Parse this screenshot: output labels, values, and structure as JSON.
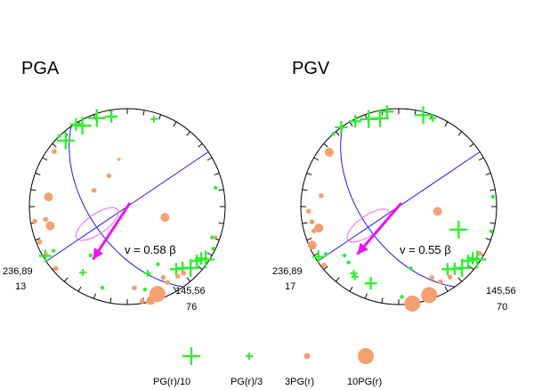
{
  "colors": {
    "plus": "#33ee33",
    "circle": "#f4a070",
    "plane": "#1a1aee",
    "arrow": "#ee11ee",
    "ellipse": "#ee66ee",
    "frame": "#000000"
  },
  "legend": [
    {
      "label": "PG(r)/10",
      "marker": "plus",
      "size": "large"
    },
    {
      "label": "PG(r)/3",
      "marker": "plus",
      "size": "small"
    },
    {
      "label": "3PG(r)",
      "marker": "circle",
      "size": "small"
    },
    {
      "label": "10PG(r)",
      "marker": "circle",
      "size": "large"
    }
  ],
  "chart_data": [
    {
      "type": "scatter",
      "projection": "stereonet",
      "title": "PGA",
      "velocity_label": "v = 0.58 β",
      "strike_labels": [
        {
          "top": "236,89",
          "bottom": "13"
        },
        {
          "top": "145,56",
          "bottom": "76"
        }
      ],
      "arrow": {
        "azimuth": 213,
        "plunge": 32
      },
      "confidence_ellipse": {
        "azimuth": 240,
        "plunge": 58
      },
      "points": [
        {
          "az": -43,
          "pl": 7,
          "m": "plus",
          "s": 3
        },
        {
          "az": -29,
          "pl": 5,
          "m": "plus",
          "s": 3
        },
        {
          "az": -19,
          "pl": 4,
          "m": "plus",
          "s": 3
        },
        {
          "az": -32,
          "pl": 1,
          "m": "plus",
          "s": 2
        },
        {
          "az": -10,
          "pl": 6,
          "m": "plus",
          "s": 2
        },
        {
          "az": 17,
          "pl": 6,
          "m": "plus",
          "s": 1
        },
        {
          "az": -44,
          "pl": 0,
          "m": "dot",
          "s": 0
        },
        {
          "az": -53,
          "pl": 6,
          "m": "circle",
          "s": 1
        },
        {
          "az": -104,
          "pl": 17,
          "m": "circle",
          "s": 2
        },
        {
          "az": -112,
          "pl": 3,
          "m": "circle",
          "s": 1
        },
        {
          "az": -131,
          "pl": 3,
          "m": "circle",
          "s": 1
        },
        {
          "az": -64,
          "pl": 56,
          "m": "circle",
          "s": 1
        },
        {
          "az": -31,
          "pl": 57,
          "m": "circle",
          "s": 1
        },
        {
          "az": -10,
          "pl": 46,
          "m": "circle",
          "s": 0
        },
        {
          "az": 106,
          "pl": 54,
          "m": "circle",
          "s": 2
        },
        {
          "az": 109,
          "pl": 4,
          "m": "circle",
          "s": 0
        },
        {
          "az": 78,
          "pl": 7,
          "m": "dot",
          "s": 0
        },
        {
          "az": 110,
          "pl": 7,
          "m": "dot",
          "s": 0
        },
        {
          "az": 116,
          "pl": 2,
          "m": "dot",
          "s": 0
        },
        {
          "az": 124,
          "pl": 3,
          "m": "plus",
          "s": 3
        },
        {
          "az": 125,
          "pl": 7,
          "m": "plus",
          "s": 2
        },
        {
          "az": 128,
          "pl": 9,
          "m": "plus",
          "s": 2
        },
        {
          "az": 134,
          "pl": 9,
          "m": "plus",
          "s": 3
        },
        {
          "az": 138,
          "pl": 14,
          "m": "plus",
          "s": 2
        },
        {
          "az": 142,
          "pl": 17,
          "m": "plus",
          "s": 2
        },
        {
          "az": 140,
          "pl": 10,
          "m": "circle",
          "s": 1
        },
        {
          "az": 144,
          "pl": 11,
          "m": "circle",
          "s": 1
        },
        {
          "az": 152,
          "pl": 11,
          "m": "circle",
          "s": 1
        },
        {
          "az": 153,
          "pl": 17,
          "m": "circle",
          "s": 1
        },
        {
          "az": 161,
          "pl": 5,
          "m": "circle",
          "s": 3
        },
        {
          "az": 166,
          "pl": 1,
          "m": "circle",
          "s": 2
        },
        {
          "az": 171,
          "pl": 2,
          "m": "circle",
          "s": 1
        },
        {
          "az": 163,
          "pl": 26,
          "m": "plus",
          "s": 1
        },
        {
          "az": 175,
          "pl": 15,
          "m": "circle",
          "s": 1
        },
        {
          "az": 168,
          "pl": 12,
          "m": "dot",
          "s": 0
        },
        {
          "az": 152,
          "pl": 30,
          "m": "dot",
          "s": 0
        },
        {
          "az": 197,
          "pl": 12,
          "m": "dot",
          "s": 0
        },
        {
          "az": 214,
          "pl": 17,
          "m": "plus",
          "s": 1
        },
        {
          "az": 217,
          "pl": 34,
          "m": "dot",
          "s": 0
        },
        {
          "az": 239,
          "pl": 2,
          "m": "plus",
          "s": 2
        },
        {
          "az": 239,
          "pl": 11,
          "m": "dot",
          "s": 0
        },
        {
          "az": 261,
          "pl": 14,
          "m": "circle",
          "s": 1
        },
        {
          "az": 261,
          "pl": 4,
          "m": "circle",
          "s": 1
        },
        {
          "az": 277,
          "pl": 17,
          "m": "circle",
          "s": 2
        },
        {
          "az": 240,
          "pl": 4,
          "m": "circle",
          "s": 0
        }
      ]
    },
    {
      "type": "scatter",
      "projection": "stereonet",
      "title": "PGV",
      "velocity_label": "v = 0.55 β",
      "strike_labels": [
        {
          "top": "236,89",
          "bottom": "17"
        },
        {
          "top": "145,56",
          "bottom": "70"
        }
      ],
      "arrow": {
        "azimuth": 221,
        "plunge": 32
      },
      "confidence_ellipse": {
        "azimuth": 238,
        "plunge": 57
      },
      "points": [
        {
          "az": -36,
          "pl": 0,
          "m": "plus",
          "s": 2
        },
        {
          "az": -27,
          "pl": 2,
          "m": "plus",
          "s": 2
        },
        {
          "az": -19,
          "pl": 5,
          "m": "plus",
          "s": 3
        },
        {
          "az": -12,
          "pl": 7,
          "m": "plus",
          "s": 3
        },
        {
          "az": -7,
          "pl": 2,
          "m": "plus",
          "s": 2
        },
        {
          "az": 15,
          "pl": 3,
          "m": "plus",
          "s": 3
        },
        {
          "az": 21,
          "pl": 3,
          "m": "plus",
          "s": 1
        },
        {
          "az": -42,
          "pl": 0,
          "m": "dot",
          "s": 0
        },
        {
          "az": -52,
          "pl": 9,
          "m": "circle",
          "s": 2
        },
        {
          "az": -93,
          "pl": 7,
          "m": "circle",
          "s": 1
        },
        {
          "az": -106,
          "pl": 9,
          "m": "circle",
          "s": 1
        },
        {
          "az": -105,
          "pl": 14,
          "m": "circle",
          "s": 2
        },
        {
          "az": -128,
          "pl": 3,
          "m": "circle",
          "s": 1
        },
        {
          "az": 111,
          "pl": 31,
          "m": "plus",
          "s": 3
        },
        {
          "az": 97,
          "pl": 54,
          "m": "circle",
          "s": 2
        },
        {
          "az": 84,
          "pl": 3,
          "m": "dot",
          "s": 0
        },
        {
          "az": 105,
          "pl": 2,
          "m": "dot",
          "s": 0
        },
        {
          "az": 120,
          "pl": 4,
          "m": "circle",
          "s": 1
        },
        {
          "az": 124,
          "pl": 3,
          "m": "plus",
          "s": 3
        },
        {
          "az": 125,
          "pl": 7,
          "m": "plus",
          "s": 2
        },
        {
          "az": 128,
          "pl": 9,
          "m": "plus",
          "s": 2
        },
        {
          "az": 134,
          "pl": 9,
          "m": "plus",
          "s": 3
        },
        {
          "az": 138,
          "pl": 13,
          "m": "plus",
          "s": 2
        },
        {
          "az": 142,
          "pl": 17,
          "m": "plus",
          "s": 2
        },
        {
          "az": 144,
          "pl": 10,
          "m": "circle",
          "s": 1
        },
        {
          "az": 151,
          "pl": 11,
          "m": "circle",
          "s": 1
        },
        {
          "az": 155,
          "pl": 18,
          "m": "circle",
          "s": 1
        },
        {
          "az": 161,
          "pl": 4,
          "m": "circle",
          "s": 3
        },
        {
          "az": 172,
          "pl": 0,
          "m": "circle",
          "s": 3
        },
        {
          "az": 178,
          "pl": 7,
          "m": "dot",
          "s": 0
        },
        {
          "az": 200,
          "pl": 15,
          "m": "plus",
          "s": 2
        },
        {
          "az": 212,
          "pl": 14,
          "m": "plus",
          "s": 1
        },
        {
          "az": 214,
          "pl": 16,
          "m": "plus",
          "s": 1
        },
        {
          "az": 222,
          "pl": 21,
          "m": "dot",
          "s": 0
        },
        {
          "az": 228,
          "pl": 23,
          "m": "dot",
          "s": 0
        },
        {
          "az": 238,
          "pl": 3,
          "m": "plus",
          "s": 2
        },
        {
          "az": 237,
          "pl": 10,
          "m": "dot",
          "s": 0
        },
        {
          "az": 246,
          "pl": 3,
          "m": "circle",
          "s": 2
        },
        {
          "az": 260,
          "pl": 9,
          "m": "circle",
          "s": 1
        },
        {
          "az": 278,
          "pl": 18,
          "m": "circle",
          "s": 1
        },
        {
          "az": 169,
          "pl": 32,
          "m": "dot",
          "s": 0
        }
      ]
    }
  ]
}
